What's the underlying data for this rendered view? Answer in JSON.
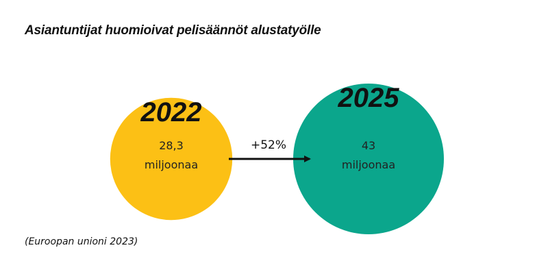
{
  "title": "Asiantuntijat huomioivat pelisäännöt alustatyölle",
  "source": "(Euroopan unioni 2023)",
  "chart_data": {
    "type": "bubble",
    "unit_label": "miljoonaa",
    "items": [
      {
        "year": "2022",
        "value_label": "28,3",
        "value": 28.3,
        "color": "#FCC015"
      },
      {
        "year": "2025",
        "value_label": "43",
        "value": 43,
        "color": "#0BA68C"
      }
    ],
    "change_label": "+52%"
  }
}
